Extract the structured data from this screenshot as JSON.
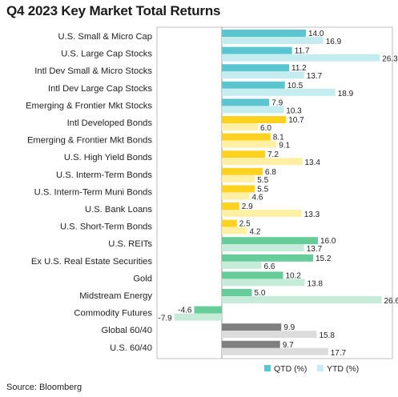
{
  "chart_data": {
    "type": "bar",
    "orientation": "horizontal",
    "title": "Q4 2023 Key Market Total Returns",
    "source": "Source: Bloomberg",
    "legend_position": "bottom-right",
    "grid": false,
    "xlim": [
      -10,
      28
    ],
    "categories": [
      {
        "label": "U.S. Small & Micro Cap",
        "qtd": 14.0,
        "ytd": 16.9,
        "qtd_label": "14.0",
        "ytd_label": "16.9",
        "qtd_color": "#5bc6cf",
        "ytd_color": "#c5ecef"
      },
      {
        "label": "U.S. Large Cap Stocks",
        "qtd": 11.7,
        "ytd": 26.3,
        "qtd_label": "11.7",
        "ytd_label": "26.3",
        "qtd_color": "#5bc6cf",
        "ytd_color": "#c5ecef"
      },
      {
        "label": "Intl Dev Small & Micro Stocks",
        "qtd": 11.2,
        "ytd": 13.7,
        "qtd_label": "11.2",
        "ytd_label": "13.7",
        "qtd_color": "#5bc6cf",
        "ytd_color": "#c5ecef"
      },
      {
        "label": "Intl Dev Large Cap Stocks",
        "qtd": 10.5,
        "ytd": 18.9,
        "qtd_label": "10.5",
        "ytd_label": "18.9",
        "qtd_color": "#5bc6cf",
        "ytd_color": "#c5ecef"
      },
      {
        "label": "Emerging & Frontier Mkt Stocks",
        "qtd": 7.9,
        "ytd": 10.3,
        "qtd_label": "7.9",
        "ytd_label": "10.3",
        "qtd_color": "#5bc6cf",
        "ytd_color": "#c5ecef"
      },
      {
        "label": "Intl Developed Bonds",
        "qtd": 10.7,
        "ytd": 6.0,
        "qtd_label": "10.7",
        "ytd_label": "6.0",
        "qtd_color": "#ffd21f",
        "ytd_color": "#fff0a6"
      },
      {
        "label": "Emerging & Frontier Mkt Bonds",
        "qtd": 8.1,
        "ytd": 9.1,
        "qtd_label": "8.1",
        "ytd_label": "9.1",
        "qtd_color": "#ffd21f",
        "ytd_color": "#fff0a6"
      },
      {
        "label": "U.S. High Yield Bonds",
        "qtd": 7.2,
        "ytd": 13.4,
        "qtd_label": "7.2",
        "ytd_label": "13.4",
        "qtd_color": "#ffd21f",
        "ytd_color": "#fff0a6"
      },
      {
        "label": "U.S. Interm-Term Bonds",
        "qtd": 6.8,
        "ytd": 5.5,
        "qtd_label": "6.8",
        "ytd_label": "5.5",
        "qtd_color": "#ffd21f",
        "ytd_color": "#fff0a6"
      },
      {
        "label": "U.S. Interm-Term Muni Bonds",
        "qtd": 5.5,
        "ytd": 4.6,
        "qtd_label": "5.5",
        "ytd_label": "4.6",
        "qtd_color": "#ffd21f",
        "ytd_color": "#fff0a6"
      },
      {
        "label": "U.S. Bank Loans",
        "qtd": 2.9,
        "ytd": 13.3,
        "qtd_label": "2.9",
        "ytd_label": "13.3",
        "qtd_color": "#ffd21f",
        "ytd_color": "#fff0a6"
      },
      {
        "label": "U.S. Short-Term Bonds",
        "qtd": 2.5,
        "ytd": 4.2,
        "qtd_label": "2.5",
        "ytd_label": "4.2",
        "qtd_color": "#ffd21f",
        "ytd_color": "#fff0a6"
      },
      {
        "label": "U.S. REITs",
        "qtd": 16.0,
        "ytd": 13.7,
        "qtd_label": "16.0",
        "ytd_label": "13.7",
        "qtd_color": "#66cc99",
        "ytd_color": "#c6ebd8"
      },
      {
        "label": "Ex U.S. Real Estate Securities",
        "qtd": 15.2,
        "ytd": 6.6,
        "qtd_label": "15.2",
        "ytd_label": "6.6",
        "qtd_color": "#66cc99",
        "ytd_color": "#c6ebd8"
      },
      {
        "label": "Gold",
        "qtd": 10.2,
        "ytd": 13.8,
        "qtd_label": "10.2",
        "ytd_label": "13.8",
        "qtd_color": "#66cc99",
        "ytd_color": "#c6ebd8"
      },
      {
        "label": "Midstream Energy",
        "qtd": 5.0,
        "ytd": 26.6,
        "qtd_label": "5.0",
        "ytd_label": "26.6",
        "qtd_color": "#66cc99",
        "ytd_color": "#c6ebd8"
      },
      {
        "label": "Commodity Futures",
        "qtd": -4.6,
        "ytd": -7.9,
        "qtd_label": "-4.6",
        "ytd_label": "-7.9",
        "qtd_color": "#66cc99",
        "ytd_color": "#c6ebd8"
      },
      {
        "label": "Global 60/40",
        "qtd": 9.9,
        "ytd": 15.8,
        "qtd_label": "9.9",
        "ytd_label": "15.8",
        "qtd_color": "#7f7f7f",
        "ytd_color": "#dcdcdc"
      },
      {
        "label": "U.S. 60/40",
        "qtd": 9.7,
        "ytd": 17.7,
        "qtd_label": "9.7",
        "ytd_label": "17.7",
        "qtd_color": "#7f7f7f",
        "ytd_color": "#dcdcdc"
      }
    ],
    "legend": [
      {
        "name": "QTD (%)",
        "color": "#5bc6cf"
      },
      {
        "name": "YTD (%)",
        "color": "#c5ecef"
      }
    ]
  }
}
